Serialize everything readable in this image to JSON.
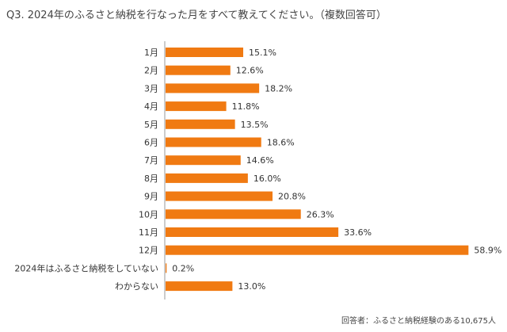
{
  "chart_data": {
    "type": "bar",
    "orientation": "horizontal",
    "title": "Q3. 2024年のふるさと納税を行なった月をすべて教えてください。（複数回答可）",
    "categories": [
      "1月",
      "2月",
      "3月",
      "4月",
      "5月",
      "6月",
      "7月",
      "8月",
      "9月",
      "10月",
      "11月",
      "12月",
      "2024年はふるさと納税をしていない",
      "わからない"
    ],
    "values": [
      15.1,
      12.6,
      18.2,
      11.8,
      13.5,
      18.6,
      14.6,
      16.0,
      20.8,
      26.3,
      33.6,
      58.9,
      0.2,
      13.0
    ],
    "labels": [
      "15.1%",
      "12.6%",
      "18.2%",
      "11.8%",
      "13.5%",
      "18.6%",
      "14.6%",
      "16.0%",
      "20.8%",
      "26.3%",
      "33.6%",
      "58.9%",
      "0.2%",
      "13.0%"
    ],
    "unit": "%",
    "xlim": [
      0,
      59
    ],
    "bar_color": "#F07A12",
    "grid": false,
    "footnote": "回答者：ふるさと納税経験のある10,675人"
  }
}
